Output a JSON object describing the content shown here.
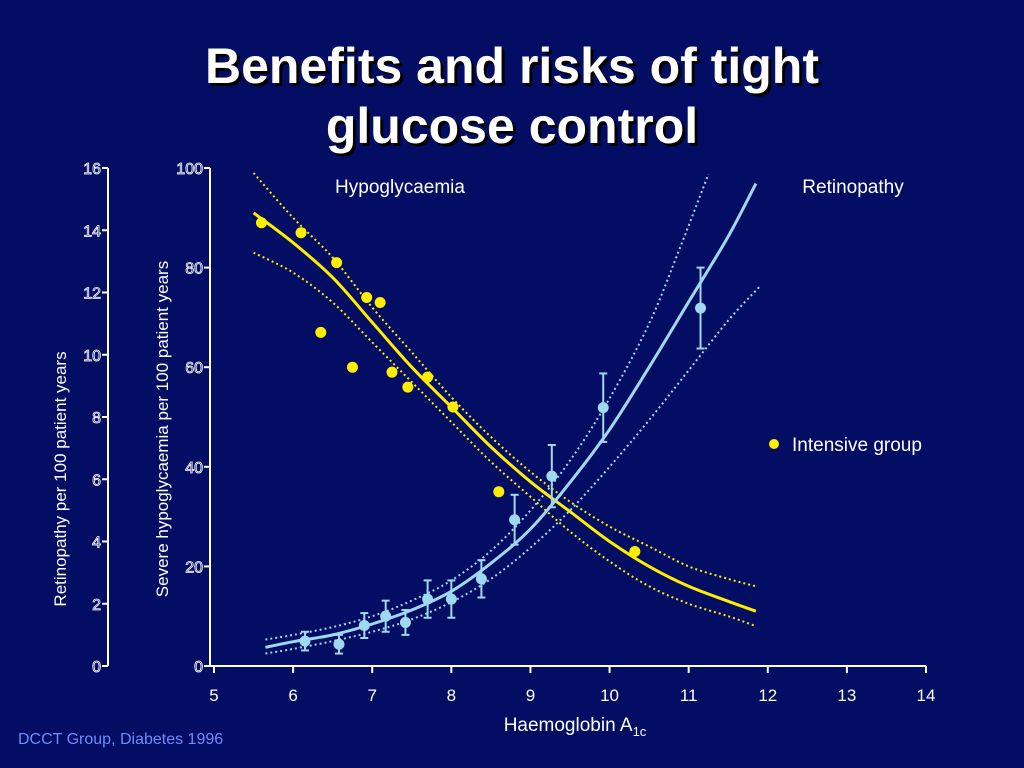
{
  "title": {
    "line1": "Benefits and risks of tight",
    "line2": "glucose control"
  },
  "source": "DCCT Group, Diabetes 1996",
  "colors": {
    "background": "#020d63",
    "hypo": "#ffee00",
    "retino": "#a0d8ef",
    "text": "#ffffff"
  },
  "chart_data": {
    "type": "scatter",
    "xlabel": "Haemoglobin A",
    "xlabel_sub": "1c",
    "ylabel_left": "Retinopathy per 100 patient years",
    "ylabel_right": "Severe hypoglycaemia per 100 patient years",
    "xlim": [
      5,
      14
    ],
    "x_ticks": [
      5,
      6,
      7,
      8,
      9,
      10,
      11,
      12,
      13,
      14
    ],
    "ylim_left": [
      0,
      16
    ],
    "y_ticks_left": [
      0,
      2,
      4,
      6,
      8,
      10,
      12,
      14,
      16
    ],
    "ylim_right": [
      0,
      100
    ],
    "y_ticks_right": [
      0,
      20,
      40,
      60,
      80,
      100
    ],
    "curve_labels": {
      "hypo": "Hypoglycaemia",
      "retino": "Retinopathy"
    },
    "legend": {
      "label": "Intensive group",
      "placement": "right"
    },
    "series": [
      {
        "key": "hypo",
        "axis": "right",
        "color": "#ffee00",
        "points": [
          {
            "x": 5.6,
            "y": 89
          },
          {
            "x": 6.1,
            "y": 87
          },
          {
            "x": 6.35,
            "y": 67
          },
          {
            "x": 6.55,
            "y": 81
          },
          {
            "x": 6.75,
            "y": 60
          },
          {
            "x": 6.93,
            "y": 74
          },
          {
            "x": 7.1,
            "y": 73
          },
          {
            "x": 7.25,
            "y": 59
          },
          {
            "x": 7.45,
            "y": 56
          },
          {
            "x": 7.7,
            "y": 58
          },
          {
            "x": 8.02,
            "y": 52
          },
          {
            "x": 8.6,
            "y": 35
          },
          {
            "x": 10.32,
            "y": 23
          }
        ],
        "fit": [
          {
            "x": 5.5,
            "y": 91
          },
          {
            "x": 6.0,
            "y": 85
          },
          {
            "x": 6.5,
            "y": 78
          },
          {
            "x": 7.0,
            "y": 69
          },
          {
            "x": 7.5,
            "y": 60
          },
          {
            "x": 8.0,
            "y": 52
          },
          {
            "x": 8.5,
            "y": 44
          },
          {
            "x": 9.0,
            "y": 37
          },
          {
            "x": 9.5,
            "y": 31
          },
          {
            "x": 10.0,
            "y": 25
          },
          {
            "x": 10.5,
            "y": 20
          },
          {
            "x": 11.0,
            "y": 16
          },
          {
            "x": 11.5,
            "y": 13
          },
          {
            "x": 11.85,
            "y": 11
          }
        ],
        "ci_upper": [
          {
            "x": 5.5,
            "y": 99
          },
          {
            "x": 6.0,
            "y": 90
          },
          {
            "x": 6.5,
            "y": 82
          },
          {
            "x": 7.0,
            "y": 72
          },
          {
            "x": 7.5,
            "y": 63
          },
          {
            "x": 8.0,
            "y": 54
          },
          {
            "x": 8.5,
            "y": 46
          },
          {
            "x": 9.0,
            "y": 39
          },
          {
            "x": 9.5,
            "y": 33
          },
          {
            "x": 10.0,
            "y": 28
          },
          {
            "x": 10.5,
            "y": 24
          },
          {
            "x": 11.0,
            "y": 20
          },
          {
            "x": 11.5,
            "y": 17.5
          },
          {
            "x": 11.85,
            "y": 16
          }
        ],
        "ci_lower": [
          {
            "x": 5.5,
            "y": 83
          },
          {
            "x": 6.0,
            "y": 79
          },
          {
            "x": 6.5,
            "y": 73
          },
          {
            "x": 7.0,
            "y": 65
          },
          {
            "x": 7.5,
            "y": 57
          },
          {
            "x": 8.0,
            "y": 49
          },
          {
            "x": 8.5,
            "y": 41
          },
          {
            "x": 9.0,
            "y": 34
          },
          {
            "x": 9.5,
            "y": 27
          },
          {
            "x": 10.0,
            "y": 21
          },
          {
            "x": 10.5,
            "y": 16
          },
          {
            "x": 11.0,
            "y": 12.5
          },
          {
            "x": 11.5,
            "y": 10
          },
          {
            "x": 11.85,
            "y": 8
          }
        ]
      },
      {
        "key": "retino",
        "axis": "left",
        "color": "#a0d8ef",
        "points": [
          {
            "x": 6.15,
            "y": 0.8,
            "err": 0.3
          },
          {
            "x": 6.58,
            "y": 0.7,
            "err": 0.3
          },
          {
            "x": 6.9,
            "y": 1.3,
            "err": 0.4
          },
          {
            "x": 7.17,
            "y": 1.6,
            "err": 0.5
          },
          {
            "x": 7.42,
            "y": 1.4,
            "err": 0.4
          },
          {
            "x": 7.7,
            "y": 2.15,
            "err": 0.6
          },
          {
            "x": 8.0,
            "y": 2.15,
            "err": 0.6
          },
          {
            "x": 8.38,
            "y": 2.8,
            "err": 0.6
          },
          {
            "x": 8.8,
            "y": 4.7,
            "err": 0.8
          },
          {
            "x": 9.27,
            "y": 6.1,
            "err": 1.0
          },
          {
            "x": 9.92,
            "y": 8.3,
            "err": 1.1
          },
          {
            "x": 11.15,
            "y": 11.5,
            "err": 1.3
          }
        ],
        "fit": [
          {
            "x": 5.65,
            "y": 0.6
          },
          {
            "x": 6.0,
            "y": 0.78
          },
          {
            "x": 6.5,
            "y": 1.0
          },
          {
            "x": 7.0,
            "y": 1.35
          },
          {
            "x": 7.5,
            "y": 1.8
          },
          {
            "x": 8.0,
            "y": 2.4
          },
          {
            "x": 8.5,
            "y": 3.3
          },
          {
            "x": 9.0,
            "y": 4.4
          },
          {
            "x": 9.5,
            "y": 5.9
          },
          {
            "x": 10.0,
            "y": 7.6
          },
          {
            "x": 10.5,
            "y": 9.6
          },
          {
            "x": 11.0,
            "y": 11.7
          },
          {
            "x": 11.5,
            "y": 13.8
          },
          {
            "x": 11.85,
            "y": 15.5
          }
        ],
        "ci_upper": [
          {
            "x": 5.65,
            "y": 0.85
          },
          {
            "x": 6.0,
            "y": 1.0
          },
          {
            "x": 6.5,
            "y": 1.25
          },
          {
            "x": 7.0,
            "y": 1.6
          },
          {
            "x": 7.5,
            "y": 2.1
          },
          {
            "x": 8.0,
            "y": 2.75
          },
          {
            "x": 8.5,
            "y": 3.7
          },
          {
            "x": 9.0,
            "y": 5.0
          },
          {
            "x": 9.5,
            "y": 6.6
          },
          {
            "x": 10.0,
            "y": 8.6
          },
          {
            "x": 10.5,
            "y": 11.0
          },
          {
            "x": 10.9,
            "y": 13.5
          },
          {
            "x": 11.25,
            "y": 15.8
          }
        ],
        "ci_lower": [
          {
            "x": 5.65,
            "y": 0.4
          },
          {
            "x": 6.0,
            "y": 0.55
          },
          {
            "x": 6.5,
            "y": 0.8
          },
          {
            "x": 7.0,
            "y": 1.1
          },
          {
            "x": 7.5,
            "y": 1.5
          },
          {
            "x": 8.0,
            "y": 2.05
          },
          {
            "x": 8.5,
            "y": 2.8
          },
          {
            "x": 9.0,
            "y": 3.8
          },
          {
            "x": 9.5,
            "y": 5.0
          },
          {
            "x": 10.0,
            "y": 6.4
          },
          {
            "x": 10.5,
            "y": 7.9
          },
          {
            "x": 11.0,
            "y": 9.5
          },
          {
            "x": 11.5,
            "y": 11.1
          },
          {
            "x": 11.9,
            "y": 12.2
          }
        ]
      }
    ]
  }
}
